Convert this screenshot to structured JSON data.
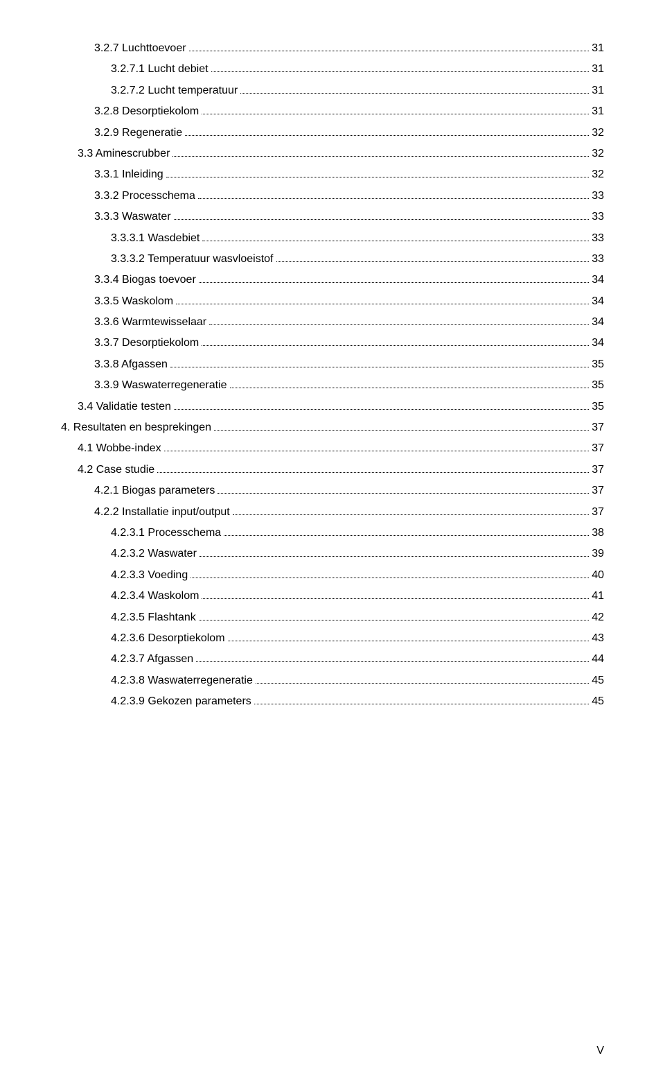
{
  "toc": {
    "entries": [
      {
        "indent": 3,
        "label": "3.2.7 Luchttoevoer",
        "page": "31"
      },
      {
        "indent": 4,
        "label": "3.2.7.1 Lucht debiet",
        "page": "31"
      },
      {
        "indent": 4,
        "label": "3.2.7.2 Lucht temperatuur",
        "page": "31"
      },
      {
        "indent": 3,
        "label": "3.2.8 Desorptiekolom",
        "page": "31"
      },
      {
        "indent": 3,
        "label": "3.2.9 Regeneratie",
        "page": "32"
      },
      {
        "indent": 2,
        "label": "3.3 Aminescrubber",
        "page": "32"
      },
      {
        "indent": 3,
        "label": "3.3.1 Inleiding",
        "page": "32"
      },
      {
        "indent": 3,
        "label": "3.3.2 Processchema",
        "page": "33"
      },
      {
        "indent": 3,
        "label": "3.3.3 Waswater",
        "page": "33"
      },
      {
        "indent": 4,
        "label": "3.3.3.1 Wasdebiet",
        "page": "33"
      },
      {
        "indent": 4,
        "label": "3.3.3.2 Temperatuur wasvloeistof",
        "page": "33"
      },
      {
        "indent": 3,
        "label": "3.3.4 Biogas toevoer",
        "page": "34"
      },
      {
        "indent": 3,
        "label": "3.3.5 Waskolom",
        "page": "34"
      },
      {
        "indent": 3,
        "label": "3.3.6 Warmtewisselaar",
        "page": "34"
      },
      {
        "indent": 3,
        "label": "3.3.7 Desorptiekolom",
        "page": "34"
      },
      {
        "indent": 3,
        "label": "3.3.8 Afgassen",
        "page": "35"
      },
      {
        "indent": 3,
        "label": "3.3.9 Waswaterregeneratie",
        "page": "35"
      },
      {
        "indent": 2,
        "label": "3.4 Validatie testen",
        "page": "35"
      },
      {
        "indent": 1,
        "label": "4.   Resultaten en besprekingen",
        "page": "37"
      },
      {
        "indent": 2,
        "label": "4.1 Wobbe-index",
        "page": "37"
      },
      {
        "indent": 2,
        "label": "4.2 Case studie",
        "page": "37"
      },
      {
        "indent": 3,
        "label": "4.2.1 Biogas parameters",
        "page": "37"
      },
      {
        "indent": 3,
        "label": "4.2.2 Installatie input/output",
        "page": "37"
      },
      {
        "indent": 4,
        "label": "4.2.3.1 Processchema",
        "page": "38"
      },
      {
        "indent": 4,
        "label": "4.2.3.2 Waswater",
        "page": "39"
      },
      {
        "indent": 4,
        "label": "4.2.3.3 Voeding",
        "page": "40"
      },
      {
        "indent": 4,
        "label": "4.2.3.4 Waskolom",
        "page": "41"
      },
      {
        "indent": 4,
        "label": "4.2.3.5 Flashtank",
        "page": "42"
      },
      {
        "indent": 4,
        "label": "4.2.3.6 Desorptiekolom",
        "page": "43"
      },
      {
        "indent": 4,
        "label": "4.2.3.7 Afgassen",
        "page": "44"
      },
      {
        "indent": 4,
        "label": "4.2.3.8 Waswaterregeneratie",
        "page": "45"
      },
      {
        "indent": 4,
        "label": "4.2.3.9 Gekozen parameters",
        "page": "45"
      }
    ]
  },
  "footer": {
    "page_number": "V"
  },
  "style": {
    "background_color": "#ffffff",
    "text_color": "#000000",
    "font_size_pt": 12,
    "line_height": 1.9,
    "font_family": "Arial"
  }
}
